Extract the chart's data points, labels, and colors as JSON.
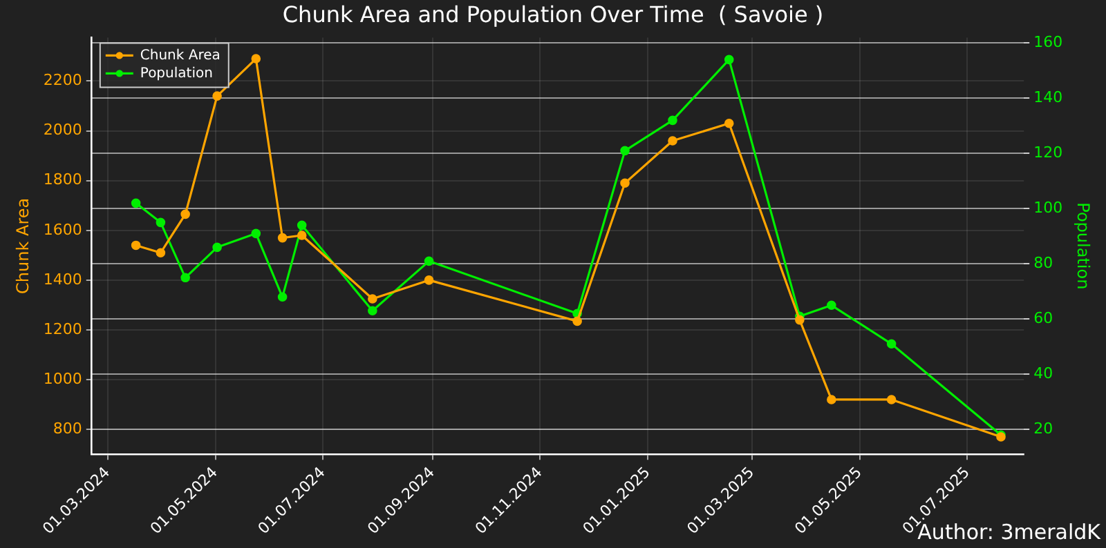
{
  "chart_data": {
    "type": "line",
    "title": "Chunk Area and Population Over Time  ( Savoie )",
    "ylabel": "Chunk Area",
    "y2label": "Population",
    "x": [
      "2024-03-17",
      "2024-03-31",
      "2024-04-14",
      "2024-05-02",
      "2024-05-24",
      "2024-06-08",
      "2024-06-19",
      "2024-07-29",
      "2024-08-30",
      "2024-11-22",
      "2024-12-19",
      "2025-01-15",
      "2025-02-16",
      "2025-03-28",
      "2025-04-15",
      "2025-05-19",
      "2025-07-20"
    ],
    "series": [
      {
        "name": "Chunk Area",
        "color": "#ffa500",
        "values": [
          1540,
          1510,
          1665,
          2140,
          2290,
          1570,
          1580,
          1325,
          1400,
          1235,
          1790,
          1960,
          2030,
          1240,
          920,
          920,
          770
        ]
      },
      {
        "name": "Population",
        "color": "#00ee00",
        "axis": "y2",
        "values": [
          102,
          95,
          75,
          86,
          91,
          68,
          94,
          63,
          81,
          62,
          121,
          132,
          154,
          61,
          65,
          51,
          18
        ]
      }
    ],
    "xlim": [
      "2024-02-21",
      "2025-08-02"
    ],
    "xticks": [
      {
        "value": "2024-03-01",
        "label": "01.03.2024"
      },
      {
        "value": "2024-05-01",
        "label": "01.05.2024"
      },
      {
        "value": "2024-07-01",
        "label": "01.07.2024"
      },
      {
        "value": "2024-09-01",
        "label": "01.09.2024"
      },
      {
        "value": "2024-11-01",
        "label": "01.11.2024"
      },
      {
        "value": "2025-01-01",
        "label": "01.01.2025"
      },
      {
        "value": "2025-03-01",
        "label": "01.03.2025"
      },
      {
        "value": "2025-05-01",
        "label": "01.05.2025"
      },
      {
        "value": "2025-07-01",
        "label": "01.07.2025"
      }
    ],
    "ylim": [
      700,
      2375
    ],
    "yticks": [
      800,
      1000,
      1200,
      1400,
      1600,
      1800,
      2000,
      2200
    ],
    "y2lim": [
      11,
      162
    ],
    "y2ticks": [
      20,
      40,
      60,
      80,
      100,
      120,
      140,
      160
    ],
    "grid": true,
    "legend": "top left",
    "marker": "circle",
    "line_style": "solid",
    "annotations": [
      "Author: 3meraldK"
    ]
  }
}
